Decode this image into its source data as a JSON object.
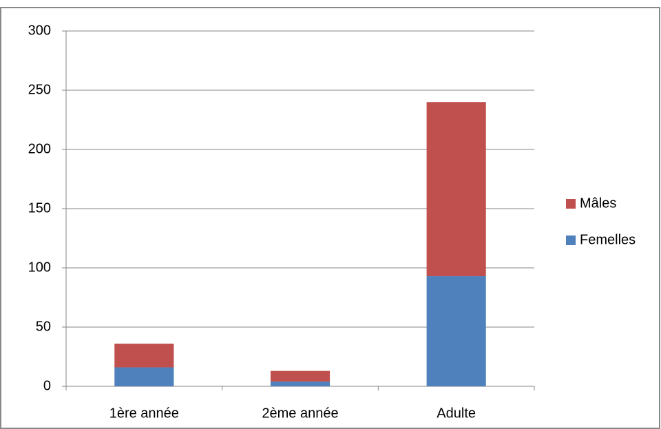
{
  "chart_data": {
    "type": "stacked_bar",
    "categories": [
      "1ère année",
      "2ème année",
      "Adulte"
    ],
    "series": [
      {
        "name": "Femelles",
        "color": "#4f81bd",
        "values": [
          16,
          4,
          93
        ]
      },
      {
        "name": "Mâles",
        "color": "#c0504d",
        "values": [
          20,
          9,
          147
        ]
      }
    ],
    "ylim": [
      0,
      300
    ],
    "yticks": [
      0,
      50,
      100,
      150,
      200,
      250,
      300
    ],
    "grid": true,
    "legend": "right"
  }
}
